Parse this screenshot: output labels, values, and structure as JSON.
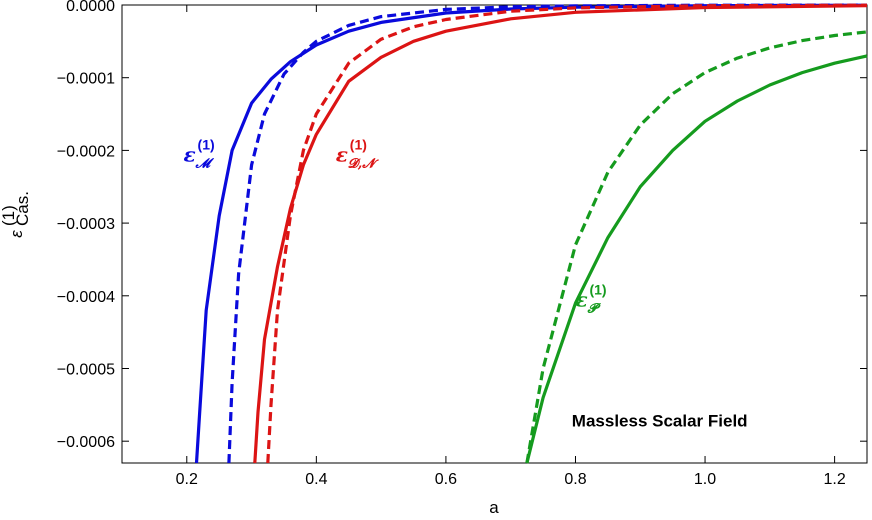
{
  "chart_data": {
    "type": "line",
    "xlabel": "a",
    "ylabel": {
      "base": "ε",
      "sup": "(1)",
      "sub": "Cas."
    },
    "xlim": [
      0.1,
      1.25
    ],
    "ylim": [
      -0.00063,
      0.0
    ],
    "xticks": [
      0.2,
      0.4,
      0.6,
      0.8,
      1.0,
      1.2
    ],
    "xtick_labels": [
      "0.2",
      "0.4",
      "0.6",
      "0.8",
      "1.0",
      "1.2"
    ],
    "yticks": [
      0,
      -0.0001,
      -0.0002,
      -0.0003,
      -0.0004,
      -0.0005,
      -0.0006
    ],
    "ytick_labels": [
      "0.0000",
      "−0.0001",
      "−0.0002",
      "−0.0003",
      "−0.0004",
      "−0.0005",
      "−0.0006"
    ],
    "series": [
      {
        "color": "#0a0adc",
        "dash": false,
        "x": [
          0.215,
          0.22,
          0.23,
          0.25,
          0.27,
          0.3,
          0.33,
          0.36,
          0.4,
          0.45,
          0.5,
          0.6,
          0.7,
          0.8,
          1.0,
          1.25
        ],
        "y": [
          -0.00063,
          -0.00056,
          -0.00042,
          -0.00029,
          -0.0002,
          -0.000135,
          -0.000102,
          -7.8e-05,
          -5.5e-05,
          -3.6e-05,
          -2.4e-05,
          -1.1e-05,
          -5.5e-06,
          -3e-06,
          -1e-06,
          -3e-07
        ]
      },
      {
        "color": "#0a0adc",
        "dash": true,
        "x": [
          0.265,
          0.27,
          0.28,
          0.3,
          0.32,
          0.35,
          0.38,
          0.4,
          0.45,
          0.5,
          0.6,
          0.7,
          0.8,
          1.0,
          1.25
        ],
        "y": [
          -0.00063,
          -0.00052,
          -0.00037,
          -0.00022,
          -0.00015,
          -9.5e-05,
          -6.5e-05,
          -5e-05,
          -2.8e-05,
          -1.6e-05,
          -6e-06,
          -2.5e-06,
          -1.2e-06,
          -3e-07,
          -1e-07
        ]
      },
      {
        "color": "#dc1414",
        "dash": false,
        "x": [
          0.305,
          0.31,
          0.32,
          0.34,
          0.36,
          0.38,
          0.4,
          0.45,
          0.5,
          0.55,
          0.6,
          0.7,
          0.8,
          1.0,
          1.25
        ],
        "y": [
          -0.00063,
          -0.00056,
          -0.00046,
          -0.00036,
          -0.00028,
          -0.00022,
          -0.000178,
          -0.000105,
          -7.2e-05,
          -5e-05,
          -3.6e-05,
          -1.9e-05,
          -1e-05,
          -3.5e-06,
          -1e-06
        ]
      },
      {
        "color": "#dc1414",
        "dash": true,
        "x": [
          0.325,
          0.33,
          0.34,
          0.36,
          0.38,
          0.4,
          0.45,
          0.5,
          0.55,
          0.6,
          0.7,
          0.8,
          1.0,
          1.25
        ],
        "y": [
          -0.00063,
          -0.00055,
          -0.00042,
          -0.00029,
          -0.0002,
          -0.00015,
          -8e-05,
          -4.7e-05,
          -3e-05,
          -2e-05,
          -8.5e-06,
          -4e-06,
          -1e-06,
          -3e-07
        ]
      },
      {
        "color": "#159b1e",
        "dash": false,
        "x": [
          0.725,
          0.75,
          0.8,
          0.85,
          0.9,
          0.95,
          1.0,
          1.05,
          1.1,
          1.15,
          1.2,
          1.25
        ],
        "y": [
          -0.00063,
          -0.00054,
          -0.00041,
          -0.00032,
          -0.00025,
          -0.0002,
          -0.00016,
          -0.000132,
          -0.00011,
          -9.3e-05,
          -8e-05,
          -7e-05
        ]
      },
      {
        "color": "#159b1e",
        "dash": true,
        "x": [
          0.725,
          0.75,
          0.8,
          0.85,
          0.9,
          0.95,
          1.0,
          1.05,
          1.1,
          1.15,
          1.2,
          1.25
        ],
        "y": [
          -0.00063,
          -0.0005,
          -0.00033,
          -0.00023,
          -0.000165,
          -0.000122,
          -9.3e-05,
          -7.3e-05,
          -5.9e-05,
          -4.9e-05,
          -4.2e-05,
          -3.7e-05
        ]
      }
    ],
    "annotations": [
      {
        "base": "ε",
        "sup": "(1)",
        "sub": "𝓜",
        "color": "#0a0adc",
        "x": 0.195,
        "y": -0.000215
      },
      {
        "base": "ε",
        "sup": "(1)",
        "sub": "𝓓,𝓝",
        "color": "#dc1414",
        "x": 0.43,
        "y": -0.000215
      },
      {
        "base": "ε",
        "sup": "(1)",
        "sub": "𝓟",
        "color": "#159b1e",
        "x": 0.8,
        "y": -0.000415
      }
    ],
    "note": {
      "text": "Massless Scalar Field",
      "x": 0.93,
      "y": -0.00058
    }
  }
}
